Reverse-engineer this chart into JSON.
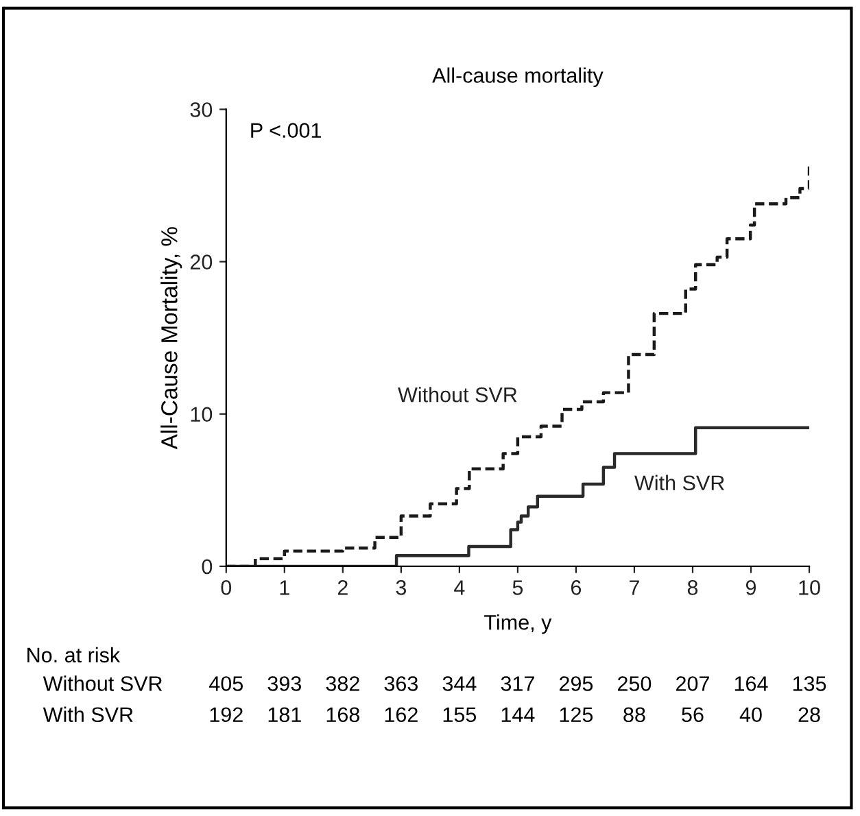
{
  "chart_data": {
    "type": "step",
    "title": "All-cause mortality",
    "xlabel": "Time, y",
    "ylabel": "All-Cause Mortality, %",
    "xlim": [
      0,
      10
    ],
    "ylim": [
      0,
      30
    ],
    "xticks": [
      0,
      1,
      2,
      3,
      4,
      5,
      6,
      7,
      8,
      9,
      10
    ],
    "yticks": [
      0,
      10,
      20,
      30
    ],
    "grid": false,
    "legend": false,
    "series": [
      {
        "name": "Without SVR",
        "color": "#1a1a1a",
        "line_style": "dashed",
        "x": [
          0,
          0.5,
          1.0,
          2.0,
          2.55,
          3.0,
          3.5,
          3.95,
          4.17,
          4.75,
          5.0,
          5.4,
          5.76,
          6.1,
          6.47,
          6.9,
          7.34,
          7.88,
          8.05,
          8.42,
          8.59,
          8.99,
          9.06,
          9.6,
          9.84,
          10.0
        ],
        "values": [
          0,
          0.5,
          1.0,
          1.2,
          1.9,
          3.3,
          4.1,
          5.1,
          6.4,
          7.4,
          8.5,
          9.2,
          10.3,
          10.8,
          11.4,
          13.9,
          16.6,
          18.2,
          19.8,
          20.3,
          21.5,
          22.4,
          23.8,
          24.2,
          24.8,
          26.4
        ]
      },
      {
        "name": "With SVR",
        "color": "#2a2a2a",
        "line_style": "solid",
        "x": [
          0,
          2.92,
          4.16,
          4.88,
          5.0,
          5.06,
          5.18,
          5.34,
          6.12,
          6.47,
          6.66,
          8.05,
          10.0
        ],
        "values": [
          0,
          0.7,
          1.3,
          2.4,
          2.9,
          3.3,
          3.9,
          4.6,
          5.4,
          6.5,
          7.4,
          9.1,
          9.1
        ]
      }
    ],
    "annotations": [
      "P <.001",
      "No. at risk",
      "Without SVR",
      "405",
      "393",
      "382",
      "363",
      "344",
      "317",
      "295",
      "250",
      "207",
      "164",
      "135",
      "With SVR",
      "192",
      "181",
      "168",
      "162",
      "155",
      "144",
      "125",
      "88",
      "56",
      "40",
      "28"
    ]
  }
}
